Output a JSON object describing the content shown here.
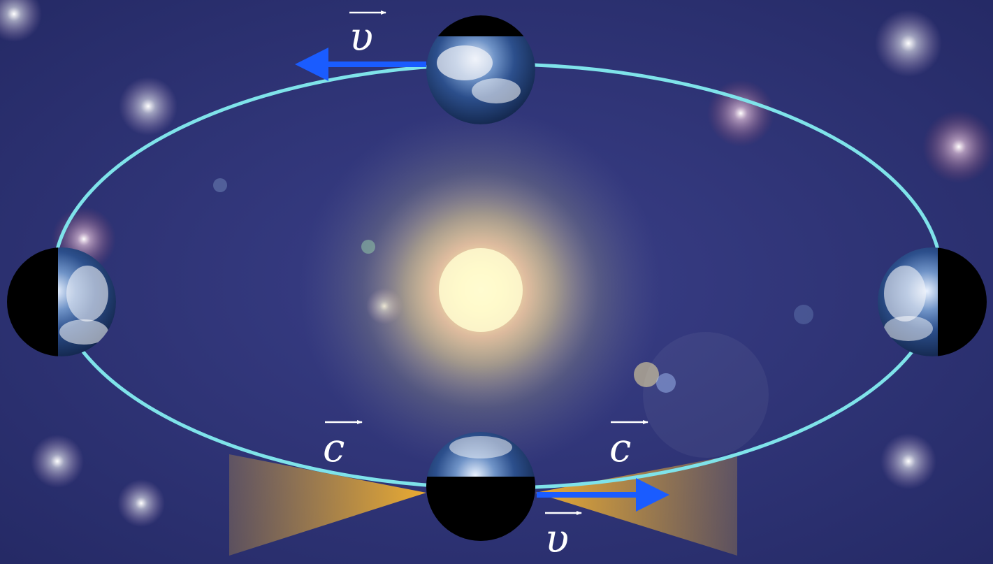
{
  "labels": {
    "velocity_top": "υ",
    "velocity_bottom": "υ",
    "light_left": "c",
    "light_right": "c"
  },
  "colors": {
    "background": "#2b3070",
    "orbit": "#7fe3ea",
    "velocity_arrow": "#1a5cff",
    "light_cone": "#f0b432",
    "sun_core": "#fffbd0",
    "sun_glow": "#f3e08a",
    "label": "#ffffff"
  },
  "icons": {
    "earth": "earth-globe-icon",
    "sun": "sun-icon",
    "star": "star-icon"
  }
}
